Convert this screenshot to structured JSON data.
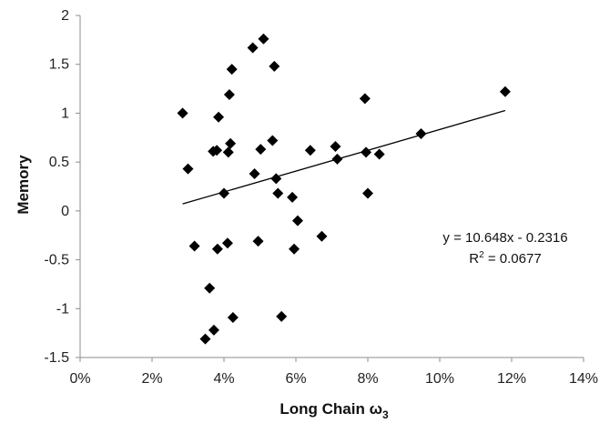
{
  "chart_data": {
    "type": "scatter",
    "title": "",
    "xlabel": "Long Chain ω",
    "xlabel_subscript": "3",
    "ylabel": "Memory",
    "xlim": [
      0,
      0.14
    ],
    "ylim": [
      -1.5,
      2
    ],
    "x_ticks": [
      {
        "value": 0.0,
        "label": "0%"
      },
      {
        "value": 0.02,
        "label": "2%"
      },
      {
        "value": 0.04,
        "label": "4%"
      },
      {
        "value": 0.06,
        "label": "6%"
      },
      {
        "value": 0.08,
        "label": "8%"
      },
      {
        "value": 0.1,
        "label": "10%"
      },
      {
        "value": 0.12,
        "label": "12%"
      },
      {
        "value": 0.14,
        "label": "14%"
      }
    ],
    "y_ticks": [
      {
        "value": -1.5,
        "label": "-1.5"
      },
      {
        "value": -1.0,
        "label": "-1"
      },
      {
        "value": -0.5,
        "label": "-0.5"
      },
      {
        "value": 0.0,
        "label": "0"
      },
      {
        "value": 0.5,
        "label": "0.5"
      },
      {
        "value": 1.0,
        "label": "1"
      },
      {
        "value": 1.5,
        "label": "1.5"
      },
      {
        "value": 2.0,
        "label": "2"
      }
    ],
    "grid": false,
    "marker": "diamond",
    "marker_color": "#000000",
    "points": [
      {
        "x": 0.0285,
        "y": 1.0
      },
      {
        "x": 0.03,
        "y": 0.43
      },
      {
        "x": 0.0318,
        "y": -0.36
      },
      {
        "x": 0.0348,
        "y": -1.31
      },
      {
        "x": 0.036,
        "y": -0.79
      },
      {
        "x": 0.037,
        "y": 0.61
      },
      {
        "x": 0.0372,
        "y": -1.22
      },
      {
        "x": 0.038,
        "y": 0.62
      },
      {
        "x": 0.0382,
        "y": -0.39
      },
      {
        "x": 0.0385,
        "y": 0.96
      },
      {
        "x": 0.04,
        "y": 0.18
      },
      {
        "x": 0.041,
        "y": -0.33
      },
      {
        "x": 0.0412,
        "y": 0.6
      },
      {
        "x": 0.0415,
        "y": 1.19
      },
      {
        "x": 0.0418,
        "y": 0.69
      },
      {
        "x": 0.0422,
        "y": 1.45
      },
      {
        "x": 0.0425,
        "y": -1.09
      },
      {
        "x": 0.048,
        "y": 1.67
      },
      {
        "x": 0.0485,
        "y": 0.38
      },
      {
        "x": 0.0495,
        "y": -0.31
      },
      {
        "x": 0.0502,
        "y": 0.63
      },
      {
        "x": 0.051,
        "y": 1.76
      },
      {
        "x": 0.0535,
        "y": 0.72
      },
      {
        "x": 0.054,
        "y": 1.48
      },
      {
        "x": 0.0545,
        "y": 0.33
      },
      {
        "x": 0.055,
        "y": 0.18
      },
      {
        "x": 0.056,
        "y": -1.08
      },
      {
        "x": 0.059,
        "y": 0.14
      },
      {
        "x": 0.0595,
        "y": -0.39
      },
      {
        "x": 0.0605,
        "y": -0.1
      },
      {
        "x": 0.064,
        "y": 0.62
      },
      {
        "x": 0.0672,
        "y": -0.26
      },
      {
        "x": 0.071,
        "y": 0.66
      },
      {
        "x": 0.0715,
        "y": 0.53
      },
      {
        "x": 0.0792,
        "y": 1.15
      },
      {
        "x": 0.0795,
        "y": 0.6
      },
      {
        "x": 0.08,
        "y": 0.18
      },
      {
        "x": 0.0832,
        "y": 0.58
      },
      {
        "x": 0.0948,
        "y": 0.79
      },
      {
        "x": 0.1182,
        "y": 1.22
      }
    ],
    "trendline": {
      "type": "linear",
      "slope": 10.648,
      "intercept": -0.2316,
      "x_start": 0.0285,
      "x_end": 0.1182,
      "equation_label": "y = 10.648x - 0.2316",
      "r2_prefix": "R",
      "r2_superscript": "2",
      "r2_value": " = 0.0677"
    }
  }
}
